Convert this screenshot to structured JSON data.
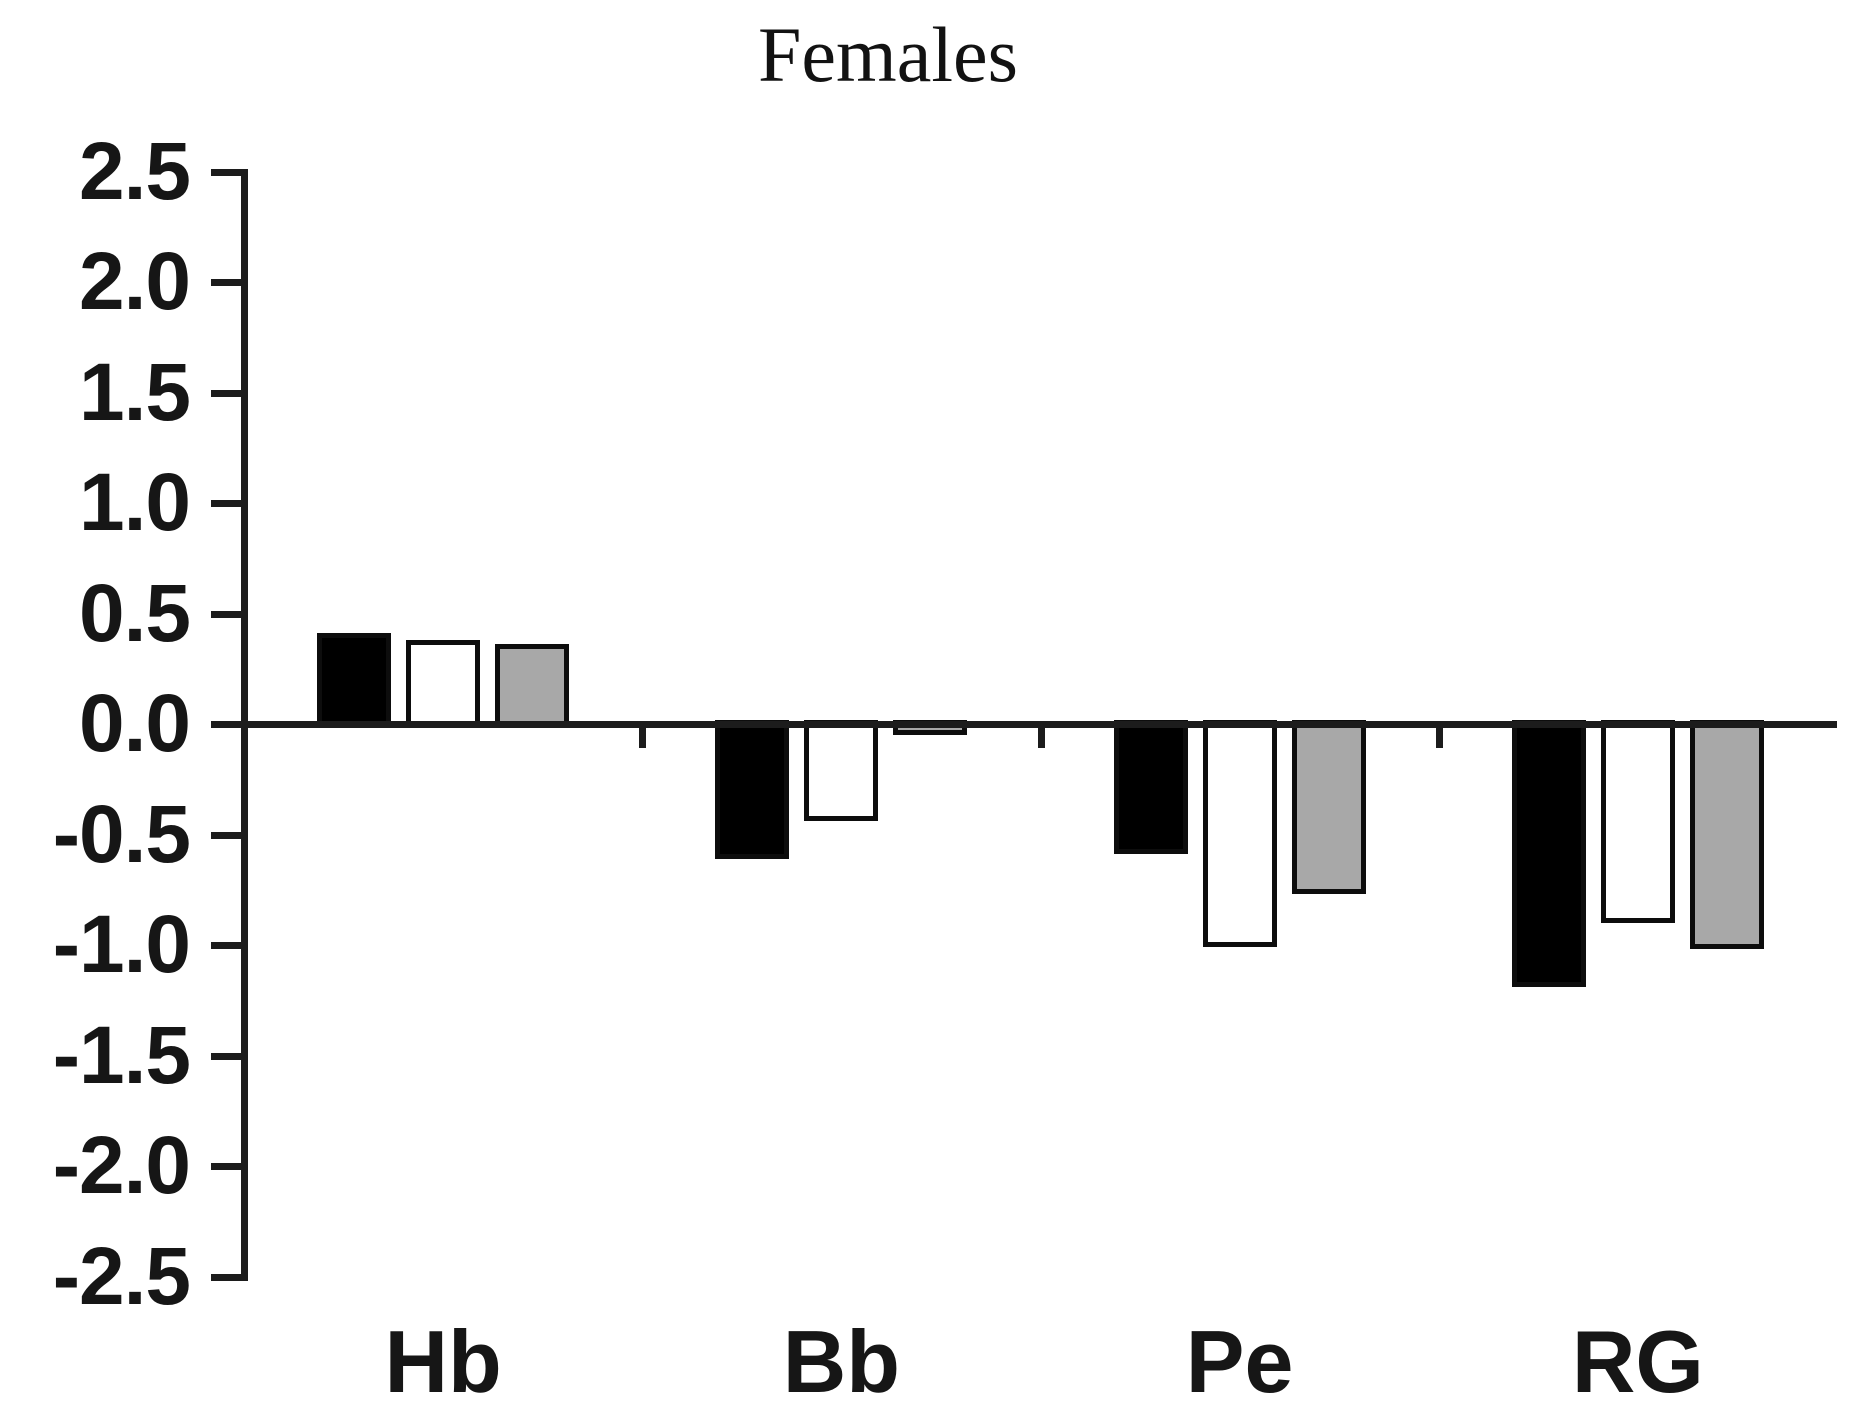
{
  "chart_data": {
    "type": "bar",
    "title": "Females",
    "xlabel": "",
    "ylabel": "",
    "categories": [
      "Hb",
      "Bb",
      "Pe",
      "RG"
    ],
    "series": [
      {
        "name": "black",
        "fill": "#000000",
        "values": [
          0.41,
          -0.61,
          -0.59,
          -1.19
        ]
      },
      {
        "name": "white",
        "fill": "#ffffff",
        "values": [
          0.38,
          -0.44,
          -1.01,
          -0.9
        ]
      },
      {
        "name": "grey",
        "fill": "#a8a8a8",
        "values": [
          0.36,
          -0.05,
          -0.77,
          -1.02
        ]
      }
    ],
    "ylim": [
      -2.5,
      2.5
    ],
    "ytick_step": 0.5,
    "ytick_labels": [
      "2.5",
      "2.0",
      "1.5",
      "1.0",
      "0.5",
      "0.0",
      "-0.5",
      "-1.0",
      "-1.5",
      "-2.0",
      "-2.5"
    ],
    "bar_outline_color": "#0d0d0d",
    "axis_color": "#1c1c1c",
    "text_color": "#161616",
    "grid": false,
    "legend": "none"
  }
}
